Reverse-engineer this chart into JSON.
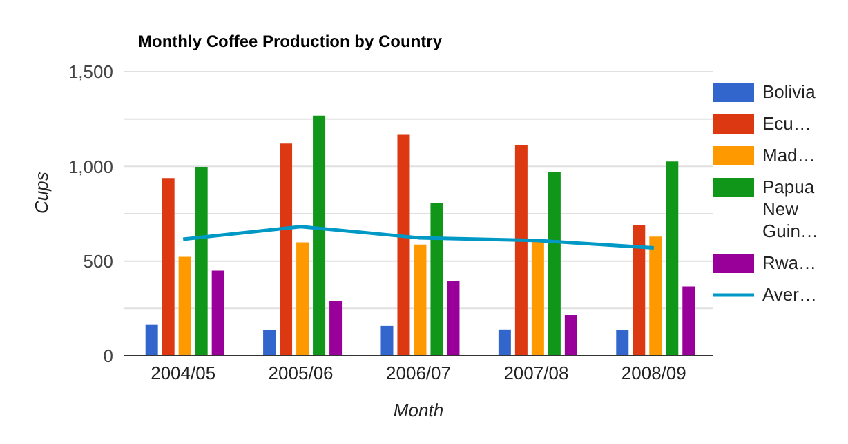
{
  "chart_data": {
    "type": "bar",
    "title": "Monthly Coffee Production by Country",
    "xlabel": "Month",
    "ylabel": "Cups",
    "categories": [
      "2004/05",
      "2005/06",
      "2006/07",
      "2007/08",
      "2008/09"
    ],
    "series": [
      {
        "name": "Bolivia",
        "color": "#3366cc",
        "values": [
          165,
          135,
          157,
          139,
          136
        ]
      },
      {
        "name": "Ecu…",
        "color": "#dc3912",
        "values": [
          938,
          1120,
          1167,
          1110,
          691
        ]
      },
      {
        "name": "Mad…",
        "color": "#ff9900",
        "values": [
          522,
          599,
          587,
          615,
          629
        ]
      },
      {
        "name": "Papua New Guin…",
        "color": "#109618",
        "values": [
          998,
          1268,
          807,
          968,
          1026
        ]
      },
      {
        "name": "Rwa…",
        "color": "#990099",
        "values": [
          450,
          288,
          397,
          215,
          366
        ]
      },
      {
        "name": "Aver…",
        "color": "#0099c6",
        "type": "line",
        "marker": "none",
        "values": [
          615,
          682,
          623,
          609,
          570
        ]
      }
    ],
    "ylim": [
      0,
      1500
    ],
    "yticks": [
      0,
      {
        "value": 250,
        "label": null
      },
      500,
      {
        "value": 750,
        "label": null
      },
      {
        "value": 1000,
        "label": "1,000"
      },
      {
        "value": 1250,
        "label": null
      },
      {
        "value": 1500,
        "label": "1,500"
      }
    ],
    "grid": "y",
    "legend": "right"
  }
}
